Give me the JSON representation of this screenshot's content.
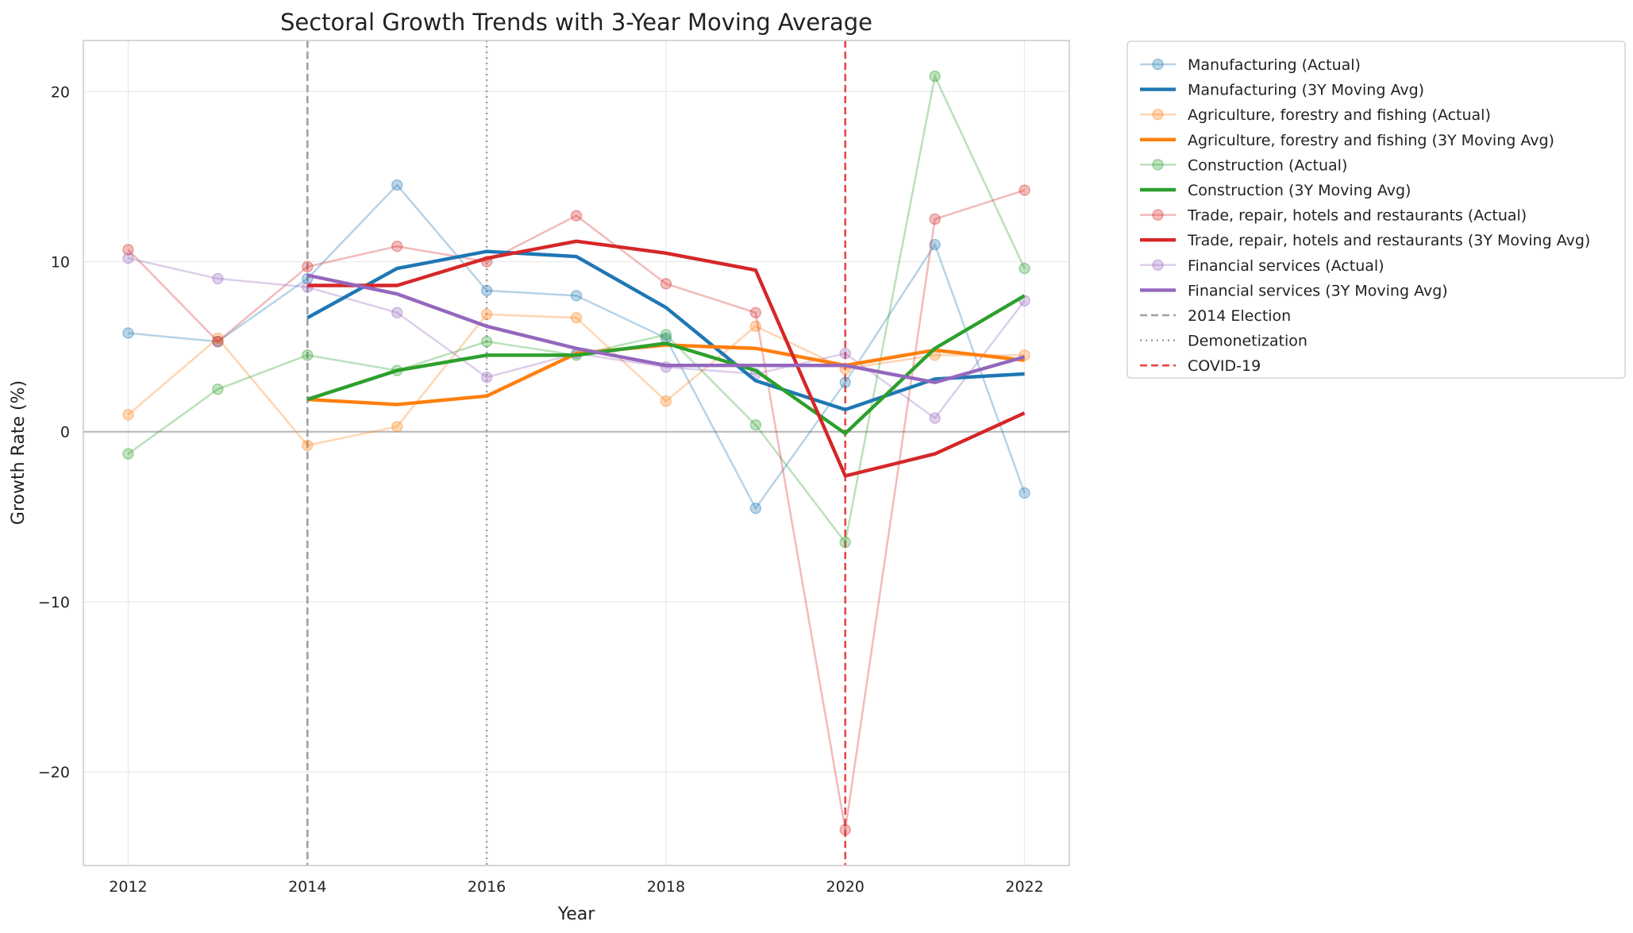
{
  "chart_data": {
    "type": "line",
    "title": "Sectoral Growth Trends with 3-Year Moving Average",
    "xlabel": "Year",
    "ylabel": "Growth Rate (%)",
    "xlim": [
      2011.5,
      2022.5
    ],
    "ylim": [
      -25.5,
      23.0
    ],
    "xticks": [
      2012,
      2014,
      2016,
      2018,
      2020,
      2022
    ],
    "yticks": [
      -20,
      -10,
      0,
      10,
      20
    ],
    "ytick_labels": [
      "−20",
      "−10",
      "0",
      "10",
      "20"
    ],
    "grid": true,
    "legend_position": "outside-right",
    "x": [
      2012,
      2013,
      2014,
      2015,
      2016,
      2017,
      2018,
      2019,
      2020,
      2021,
      2022
    ],
    "sectors": [
      {
        "color": "#1f77b4",
        "actual_label": "Manufacturing (Actual)",
        "ma_label": "Manufacturing (3Y Moving Avg)",
        "actual": [
          5.8,
          5.3,
          9.0,
          14.5,
          8.3,
          8.0,
          5.5,
          -4.5,
          2.9,
          11.0,
          -3.6
        ],
        "moving_avg": [
          null,
          null,
          6.7,
          9.6,
          10.6,
          10.3,
          7.3,
          3.0,
          1.3,
          3.1,
          3.4
        ]
      },
      {
        "color": "#ff7f0e",
        "actual_label": "Agriculture, forestry and fishing (Actual)",
        "ma_label": "Agriculture, forestry and fishing (3Y Moving Avg)",
        "actual": [
          1.0,
          5.5,
          -0.8,
          0.3,
          6.9,
          6.7,
          1.8,
          6.2,
          3.7,
          4.5,
          4.5
        ],
        "moving_avg": [
          null,
          null,
          1.9,
          1.6,
          2.1,
          4.6,
          5.1,
          4.9,
          3.9,
          4.8,
          4.2
        ]
      },
      {
        "color": "#2ca02c",
        "actual_label": "Construction (Actual)",
        "ma_label": "Construction (3Y Moving Avg)",
        "actual": [
          -1.3,
          2.5,
          4.5,
          3.6,
          5.3,
          4.5,
          5.7,
          0.4,
          -6.5,
          20.9,
          9.6
        ],
        "moving_avg": [
          null,
          null,
          1.9,
          3.6,
          4.5,
          4.5,
          5.2,
          3.6,
          -0.1,
          4.9,
          8.0
        ]
      },
      {
        "color": "#d62728",
        "actual_label": "Trade, repair, hotels and restaurants (Actual)",
        "ma_label": "Trade, repair, hotels and restaurants (3Y Moving Avg)",
        "actual": [
          10.7,
          5.3,
          9.7,
          10.9,
          10.0,
          12.7,
          8.7,
          7.0,
          -23.4,
          12.5,
          14.2
        ],
        "moving_avg": [
          null,
          null,
          8.6,
          8.6,
          10.2,
          11.2,
          10.5,
          9.5,
          -2.6,
          -1.3,
          1.1
        ]
      },
      {
        "color": "#9467bd",
        "actual_label": "Financial services (Actual)",
        "ma_label": "Financial services (3Y Moving Avg)",
        "actual": [
          10.2,
          9.0,
          8.5,
          7.0,
          3.2,
          4.6,
          3.8,
          3.4,
          4.6,
          0.8,
          7.7
        ],
        "moving_avg": [
          null,
          null,
          9.2,
          8.1,
          6.2,
          4.9,
          3.9,
          3.9,
          3.9,
          2.9,
          4.4
        ]
      }
    ],
    "events": [
      {
        "label": "2014 Election",
        "x": 2014,
        "color": "#a0a0a0",
        "style": "dashed"
      },
      {
        "label": "Demonetization",
        "x": 2016,
        "color": "#a0a0a0",
        "style": "dotted"
      },
      {
        "label": "COVID-19",
        "x": 2020,
        "color": "#e8474a",
        "style": "dashed"
      }
    ]
  }
}
